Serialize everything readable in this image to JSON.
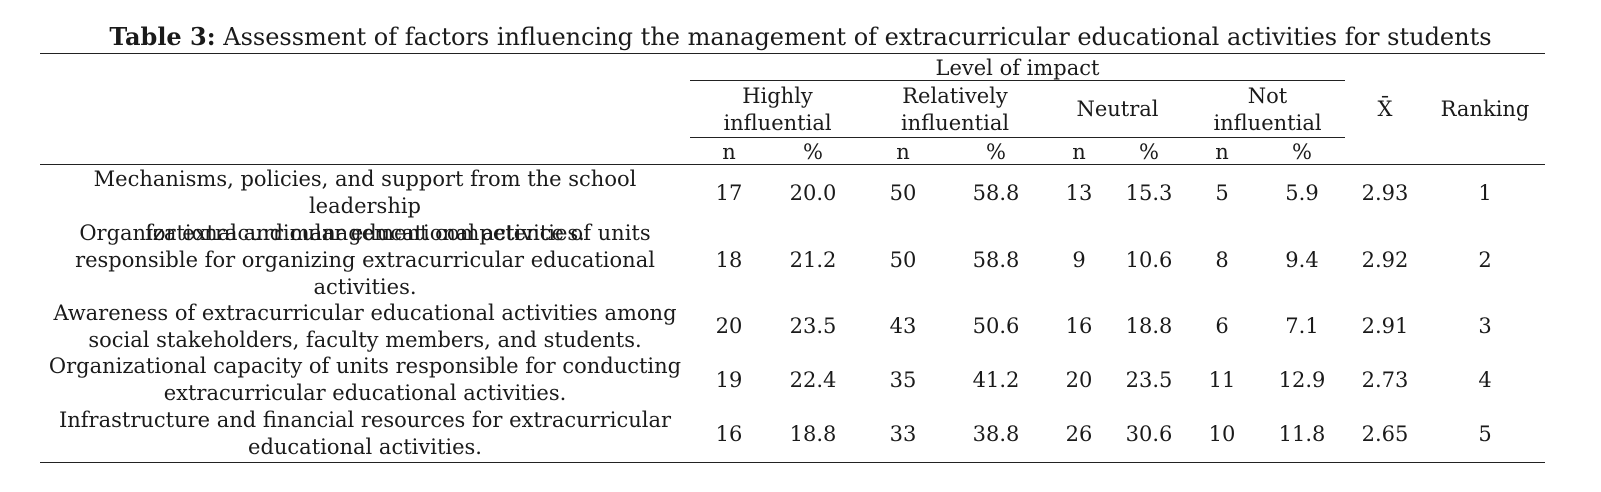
{
  "caption": {
    "label": "Table 3:",
    "text": " Assessment of factors influencing the management of extracurricular educational activities for students"
  },
  "header": {
    "group_label": "Level of impact",
    "levels": [
      {
        "line1": "Highly",
        "line2": "influential"
      },
      {
        "line1": "Relatively",
        "line2": "influential"
      },
      {
        "line1": "Neutral",
        "line2": ""
      },
      {
        "line1": "Not",
        "line2": "influential"
      }
    ],
    "n_label": "n",
    "pct_label": "%",
    "mean_label": "X̄",
    "ranking_label": "Ranking"
  },
  "rows": [
    {
      "factor_lines": [
        "Mechanisms, policies, and support from the school leadership",
        "for extracurricular educational activities."
      ],
      "values": [
        "17",
        "20.0",
        "50",
        "58.8",
        "13",
        "15.3",
        "5",
        "5.9",
        "2.93",
        "1"
      ]
    },
    {
      "factor_lines": [
        "Organizational and management competence of units",
        "responsible for organizing extracurricular educational",
        "activities."
      ],
      "values": [
        "18",
        "21.2",
        "50",
        "58.8",
        "9",
        "10.6",
        "8",
        "9.4",
        "2.92",
        "2"
      ]
    },
    {
      "factor_lines": [
        "Awareness of extracurricular educational activities among",
        "social stakeholders, faculty members, and students."
      ],
      "values": [
        "20",
        "23.5",
        "43",
        "50.6",
        "16",
        "18.8",
        "6",
        "7.1",
        "2.91",
        "3"
      ]
    },
    {
      "factor_lines": [
        "Organizational capacity of units responsible for conducting",
        "extracurricular educational activities."
      ],
      "values": [
        "19",
        "22.4",
        "35",
        "41.2",
        "20",
        "23.5",
        "11",
        "12.9",
        "2.73",
        "4"
      ]
    },
    {
      "factor_lines": [
        "Infrastructure and financial resources for extracurricular",
        "educational activities."
      ],
      "values": [
        "16",
        "18.8",
        "33",
        "38.8",
        "26",
        "30.6",
        "10",
        "11.8",
        "2.65",
        "5"
      ]
    }
  ]
}
